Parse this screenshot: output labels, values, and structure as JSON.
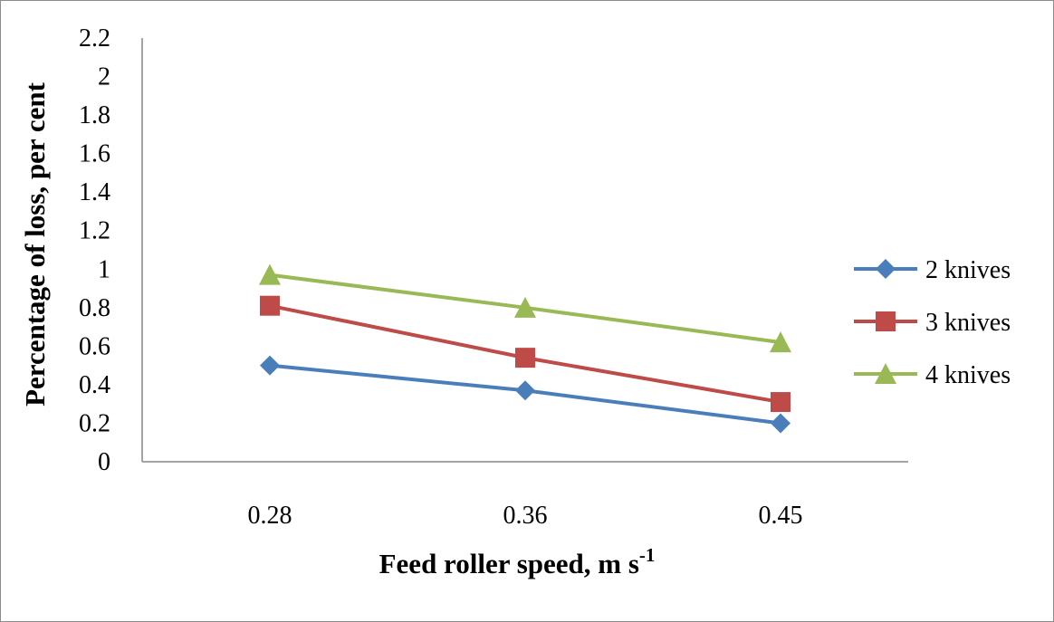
{
  "chart_data": {
    "type": "line",
    "title": "",
    "xlabel": "Feed roller speed, m s",
    "xlabel_superscript": "-1",
    "ylabel": "Percentage of loss, per cent",
    "categories": [
      "0.28",
      "0.36",
      "0.45"
    ],
    "ylim": [
      0,
      2.2
    ],
    "yticks": [
      "0",
      "0.2",
      "0.4",
      "0.6",
      "0.8",
      "1",
      "1.2",
      "1.4",
      "1.6",
      "1.8",
      "2",
      "2.2"
    ],
    "grid": false,
    "legend_position": "right",
    "series": [
      {
        "name": "2 knives",
        "values": [
          0.5,
          0.37,
          0.2
        ],
        "color": "#4a7ebb",
        "marker": "diamond"
      },
      {
        "name": "3 knives",
        "values": [
          0.81,
          0.54,
          0.31
        ],
        "color": "#be4b48",
        "marker": "square"
      },
      {
        "name": "4 knives",
        "values": [
          0.97,
          0.8,
          0.62
        ],
        "color": "#98b954",
        "marker": "triangle"
      }
    ]
  }
}
